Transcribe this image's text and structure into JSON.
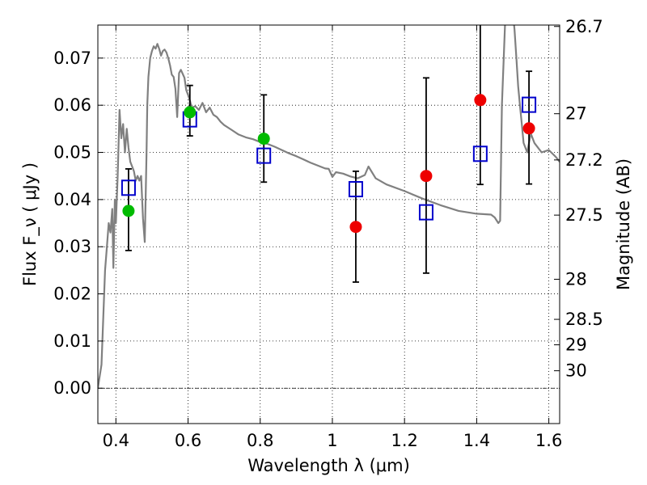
{
  "chart_data": {
    "type": "scatter",
    "xlabel": "Wavelength  λ (μm)",
    "ylabel": "Flux  F_ν  ( μJy )",
    "ylabel_right": "Magnitude (AB)",
    "xlim": [
      0.35,
      1.63
    ],
    "ylim": [
      -0.0075,
      0.077
    ],
    "grid": true,
    "x_ticks": [
      0.4,
      0.6,
      0.8,
      1.0,
      1.2,
      1.4,
      1.6
    ],
    "x_tick_labels": [
      "0.4",
      "0.6",
      "0.8",
      "1",
      "1.2",
      "1.4",
      "1.6"
    ],
    "y_ticks": [
      0.0,
      0.01,
      0.02,
      0.03,
      0.04,
      0.05,
      0.06,
      0.07
    ],
    "y_tick_labels": [
      "0.00",
      "0.01",
      "0.02",
      "0.03",
      "0.04",
      "0.05",
      "0.06",
      "0.07"
    ],
    "right_ticks": [
      {
        "label": "26.7",
        "flux": 0.0767
      },
      {
        "label": "27",
        "flux": 0.0582
      },
      {
        "label": "27.2",
        "flux": 0.0484
      },
      {
        "label": "27.5",
        "flux": 0.0367
      },
      {
        "label": "28",
        "flux": 0.0231
      },
      {
        "label": "28.5",
        "flux": 0.0146
      },
      {
        "label": "29",
        "flux": 0.0092
      },
      {
        "label": "30",
        "flux": 0.0037
      }
    ],
    "series": [
      {
        "kind": "line",
        "color": "#808080",
        "x": [
          0.35,
          0.36,
          0.365,
          0.37,
          0.375,
          0.38,
          0.385,
          0.39,
          0.393,
          0.397,
          0.4,
          0.405,
          0.41,
          0.415,
          0.42,
          0.425,
          0.43,
          0.435,
          0.44,
          0.445,
          0.45,
          0.455,
          0.46,
          0.465,
          0.47,
          0.475,
          0.48,
          0.485,
          0.487,
          0.49,
          0.495,
          0.5,
          0.505,
          0.51,
          0.515,
          0.52,
          0.525,
          0.53,
          0.535,
          0.54,
          0.545,
          0.55,
          0.555,
          0.56,
          0.565,
          0.57,
          0.575,
          0.58,
          0.585,
          0.59,
          0.595,
          0.6,
          0.605,
          0.61,
          0.62,
          0.63,
          0.64,
          0.65,
          0.66,
          0.67,
          0.68,
          0.69,
          0.7,
          0.72,
          0.74,
          0.76,
          0.78,
          0.8,
          0.82,
          0.84,
          0.86,
          0.88,
          0.9,
          0.92,
          0.94,
          0.96,
          0.98,
          0.99,
          1.0,
          1.01,
          1.03,
          1.05,
          1.07,
          1.09,
          1.1,
          1.12,
          1.15,
          1.2,
          1.25,
          1.3,
          1.35,
          1.4,
          1.44,
          1.45,
          1.46,
          1.465,
          1.47,
          1.48,
          1.49,
          1.5,
          1.505,
          1.51,
          1.515,
          1.52,
          1.525,
          1.53,
          1.54,
          1.55,
          1.56,
          1.58,
          1.6,
          1.62,
          1.63
        ],
        "y": [
          0.0,
          0.005,
          0.015,
          0.025,
          0.03,
          0.035,
          0.033,
          0.038,
          0.0255,
          0.04,
          0.035,
          0.045,
          0.059,
          0.053,
          0.056,
          0.05,
          0.055,
          0.051,
          0.048,
          0.047,
          0.046,
          0.044,
          0.045,
          0.044,
          0.045,
          0.036,
          0.031,
          0.05,
          0.06,
          0.066,
          0.07,
          0.0715,
          0.0725,
          0.072,
          0.073,
          0.072,
          0.0705,
          0.0715,
          0.0718,
          0.0712,
          0.07,
          0.0685,
          0.0665,
          0.066,
          0.0635,
          0.0575,
          0.0668,
          0.0675,
          0.0667,
          0.0658,
          0.0632,
          0.0622,
          0.061,
          0.0595,
          0.0598,
          0.059,
          0.0605,
          0.0585,
          0.0595,
          0.058,
          0.0575,
          0.0565,
          0.0558,
          0.0548,
          0.0538,
          0.0532,
          0.0528,
          0.0522,
          0.0518,
          0.0512,
          0.0505,
          0.0498,
          0.0492,
          0.0485,
          0.0478,
          0.0472,
          0.0466,
          0.0465,
          0.0448,
          0.0458,
          0.0455,
          0.0449,
          0.0445,
          0.0452,
          0.047,
          0.0445,
          0.0432,
          0.0418,
          0.0402,
          0.0388,
          0.0376,
          0.037,
          0.0368,
          0.0362,
          0.035,
          0.0355,
          0.06,
          0.08,
          0.08,
          0.08,
          0.076,
          0.07,
          0.064,
          0.06,
          0.056,
          0.052,
          0.05,
          0.054,
          0.052,
          0.05,
          0.0505,
          0.049,
          0.048
        ]
      },
      {
        "kind": "points-square",
        "color": "#0000cc",
        "x": [
          0.435,
          0.605,
          0.81,
          1.065,
          1.26,
          1.41,
          1.545
        ],
        "y": [
          0.0425,
          0.057,
          0.0493,
          0.0422,
          0.0373,
          0.0497,
          0.0601
        ]
      },
      {
        "kind": "points-circle",
        "color": "#00bb00",
        "x": [
          0.435,
          0.605,
          0.81
        ],
        "y": [
          0.0376,
          0.0585,
          0.0529
        ]
      },
      {
        "kind": "points-circle",
        "color": "#ee0000",
        "x": [
          1.065,
          1.26,
          1.41,
          1.545
        ],
        "y": [
          0.0342,
          0.045,
          0.0611,
          0.0551
        ]
      },
      {
        "kind": "errorbars",
        "color": "#000000",
        "x": [
          0.435,
          0.605,
          0.81,
          1.065,
          1.26,
          1.41,
          1.545
        ],
        "low": [
          0.0292,
          0.0535,
          0.0437,
          0.0225,
          0.0244,
          0.0432,
          0.0433
        ],
        "high": [
          0.0465,
          0.0642,
          0.0622,
          0.046,
          0.0658,
          0.0775,
          0.0672
        ]
      }
    ]
  }
}
